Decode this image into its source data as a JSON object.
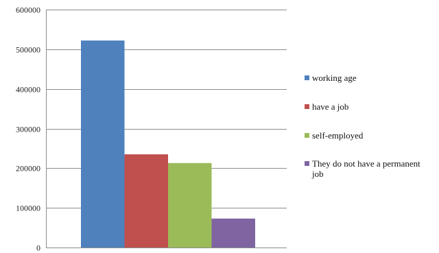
{
  "chart_data": {
    "type": "bar",
    "categories": [
      ""
    ],
    "series": [
      {
        "name": "working age",
        "values": [
          522000
        ],
        "color": "#4F81BD"
      },
      {
        "name": "have a job",
        "values": [
          235000
        ],
        "color": "#C0504D"
      },
      {
        "name": "self-employed",
        "values": [
          213000
        ],
        "color": "#9BBB59"
      },
      {
        "name": "They do not have a permanent job",
        "values": [
          73000
        ],
        "color": "#8064A2"
      }
    ],
    "title": "",
    "xlabel": "",
    "ylabel": "",
    "ylim": [
      0,
      600000
    ],
    "yticks": [
      0,
      100000,
      200000,
      300000,
      400000,
      500000,
      600000
    ],
    "grid": true,
    "legend_position": "right"
  }
}
